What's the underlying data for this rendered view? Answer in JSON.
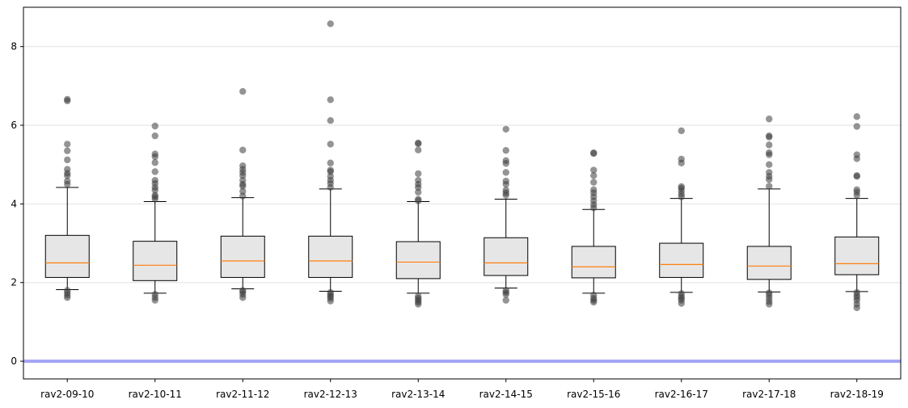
{
  "chart_data": {
    "type": "box",
    "title": "",
    "xlabel": "",
    "ylabel": "",
    "ylim": [
      -0.45,
      9.0
    ],
    "yticks": [
      0,
      2,
      4,
      6,
      8
    ],
    "ytick_labels": [
      "0",
      "2",
      "4",
      "6",
      "8"
    ],
    "grid": "horizontal",
    "reference_line": {
      "y": 0,
      "color": "#a3a3f5"
    },
    "colors": {
      "box_fill": "#e6e6e6",
      "box_edge": "#000000",
      "median": "#ff7f0e",
      "outlier": "#3c3c3c",
      "grid": "#ebebeb"
    },
    "categories": [
      "rav2-09-10",
      "rav2-10-11",
      "rav2-11-12",
      "rav2-12-13",
      "rav2-13-14",
      "rav2-14-15",
      "rav2-15-16",
      "rav2-16-17",
      "rav2-17-18",
      "rav2-18-19"
    ],
    "boxes": [
      {
        "q1": 2.13,
        "median": 2.5,
        "q3": 3.2,
        "whisker_low": 1.82,
        "whisker_high": 4.42,
        "outliers": [
          1.62,
          1.68,
          1.74,
          1.8,
          4.5,
          4.58,
          4.72,
          4.78,
          4.88,
          5.12,
          5.35,
          5.52,
          6.62,
          6.66
        ]
      },
      {
        "q1": 2.05,
        "median": 2.44,
        "q3": 3.05,
        "whisker_low": 1.73,
        "whisker_high": 4.06,
        "outliers": [
          1.55,
          1.62,
          1.7,
          4.12,
          4.18,
          4.22,
          4.35,
          4.42,
          4.52,
          4.6,
          4.82,
          5.05,
          5.2,
          5.27,
          5.73,
          5.98
        ]
      },
      {
        "q1": 2.13,
        "median": 2.55,
        "q3": 3.18,
        "whisker_low": 1.84,
        "whisker_high": 4.16,
        "outliers": [
          1.62,
          1.7,
          1.76,
          1.8,
          4.2,
          4.32,
          4.45,
          4.5,
          4.6,
          4.72,
          4.8,
          4.88,
          4.97,
          5.37,
          6.86
        ]
      },
      {
        "q1": 2.13,
        "median": 2.55,
        "q3": 3.18,
        "whisker_low": 1.78,
        "whisker_high": 4.38,
        "outliers": [
          1.53,
          1.6,
          1.65,
          1.7,
          1.75,
          4.42,
          4.52,
          4.6,
          4.7,
          4.82,
          4.86,
          5.04,
          5.52,
          6.12,
          6.65,
          8.58
        ]
      },
      {
        "q1": 2.1,
        "median": 2.52,
        "q3": 3.04,
        "whisker_low": 1.73,
        "whisker_high": 4.06,
        "outliers": [
          1.45,
          1.5,
          1.55,
          1.6,
          1.65,
          4.08,
          4.12,
          4.3,
          4.42,
          4.5,
          4.6,
          4.77,
          5.37,
          5.53,
          5.55
        ]
      },
      {
        "q1": 2.18,
        "median": 2.5,
        "q3": 3.14,
        "whisker_low": 1.86,
        "whisker_high": 4.12,
        "outliers": [
          1.55,
          1.7,
          1.75,
          1.8,
          4.22,
          4.28,
          4.35,
          4.5,
          4.58,
          4.8,
          5.03,
          5.1,
          5.36,
          5.9
        ]
      },
      {
        "q1": 2.12,
        "median": 2.4,
        "q3": 2.92,
        "whisker_low": 1.73,
        "whisker_high": 3.86,
        "outliers": [
          1.5,
          1.55,
          1.6,
          1.68,
          3.9,
          3.98,
          4.08,
          4.18,
          4.28,
          4.36,
          4.55,
          4.72,
          4.86,
          5.28,
          5.3
        ]
      },
      {
        "q1": 2.13,
        "median": 2.46,
        "q3": 3.0,
        "whisker_low": 1.75,
        "whisker_high": 4.14,
        "outliers": [
          1.47,
          1.55,
          1.6,
          1.65,
          1.72,
          4.18,
          4.25,
          4.33,
          4.4,
          4.44,
          5.04,
          5.14,
          5.86
        ]
      },
      {
        "q1": 2.08,
        "median": 2.42,
        "q3": 2.92,
        "whisker_low": 1.76,
        "whisker_high": 4.38,
        "outliers": [
          1.45,
          1.52,
          1.6,
          1.68,
          1.74,
          4.45,
          4.62,
          4.7,
          4.8,
          5.0,
          5.25,
          5.3,
          5.5,
          5.7,
          5.73,
          6.16
        ]
      },
      {
        "q1": 2.2,
        "median": 2.48,
        "q3": 3.16,
        "whisker_low": 1.77,
        "whisker_high": 4.14,
        "outliers": [
          1.36,
          1.45,
          1.55,
          1.62,
          1.68,
          1.75,
          4.22,
          4.3,
          4.36,
          4.7,
          4.72,
          5.15,
          5.25,
          5.97,
          6.22
        ]
      }
    ]
  }
}
